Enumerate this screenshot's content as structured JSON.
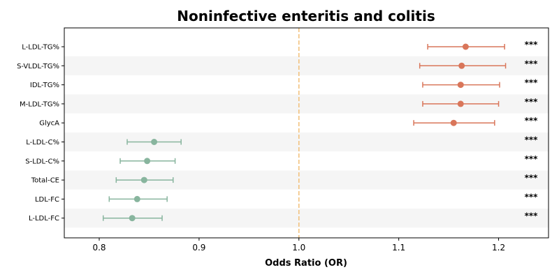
{
  "chart_data": {
    "type": "forest",
    "title": "Noninfective enteritis and colitis",
    "xlabel": "Odds Ratio (OR)",
    "xlim": [
      0.765,
      1.25
    ],
    "xticks": [
      0.8,
      0.9,
      1.0,
      1.1,
      1.2
    ],
    "xtick_labels": [
      "0.8",
      "0.9",
      "1.0",
      "1.1",
      "1.2"
    ],
    "reference_line": 1.0,
    "grid": false,
    "rows": [
      {
        "label": "L-LDL-TG%",
        "or": 1.167,
        "lower": 1.129,
        "upper": 1.206,
        "significance": "***",
        "direction": "risk"
      },
      {
        "label": "S-VLDL-TG%",
        "or": 1.163,
        "lower": 1.121,
        "upper": 1.207,
        "significance": "***",
        "direction": "risk"
      },
      {
        "label": "IDL-TG%",
        "or": 1.162,
        "lower": 1.124,
        "upper": 1.201,
        "significance": "***",
        "direction": "risk"
      },
      {
        "label": "M-LDL-TG%",
        "or": 1.162,
        "lower": 1.124,
        "upper": 1.2,
        "significance": "***",
        "direction": "risk"
      },
      {
        "label": "GlycA",
        "or": 1.155,
        "lower": 1.115,
        "upper": 1.196,
        "significance": "***",
        "direction": "risk"
      },
      {
        "label": "L-LDL-C%",
        "or": 0.855,
        "lower": 0.828,
        "upper": 0.882,
        "significance": "***",
        "direction": "protective"
      },
      {
        "label": "S-LDL-C%",
        "or": 0.848,
        "lower": 0.821,
        "upper": 0.876,
        "significance": "***",
        "direction": "protective"
      },
      {
        "label": "Total-CE",
        "or": 0.845,
        "lower": 0.817,
        "upper": 0.874,
        "significance": "***",
        "direction": "protective"
      },
      {
        "label": "LDL-FC",
        "or": 0.838,
        "lower": 0.81,
        "upper": 0.868,
        "significance": "***",
        "direction": "protective"
      },
      {
        "label": "L-LDL-FC",
        "or": 0.833,
        "lower": 0.804,
        "upper": 0.863,
        "significance": "***",
        "direction": "protective"
      }
    ],
    "colors": {
      "risk": "#d9765a",
      "protective": "#88b59e",
      "reference_line": "#f2c27e",
      "band": "#f5f5f5",
      "axis": "#000000"
    }
  }
}
